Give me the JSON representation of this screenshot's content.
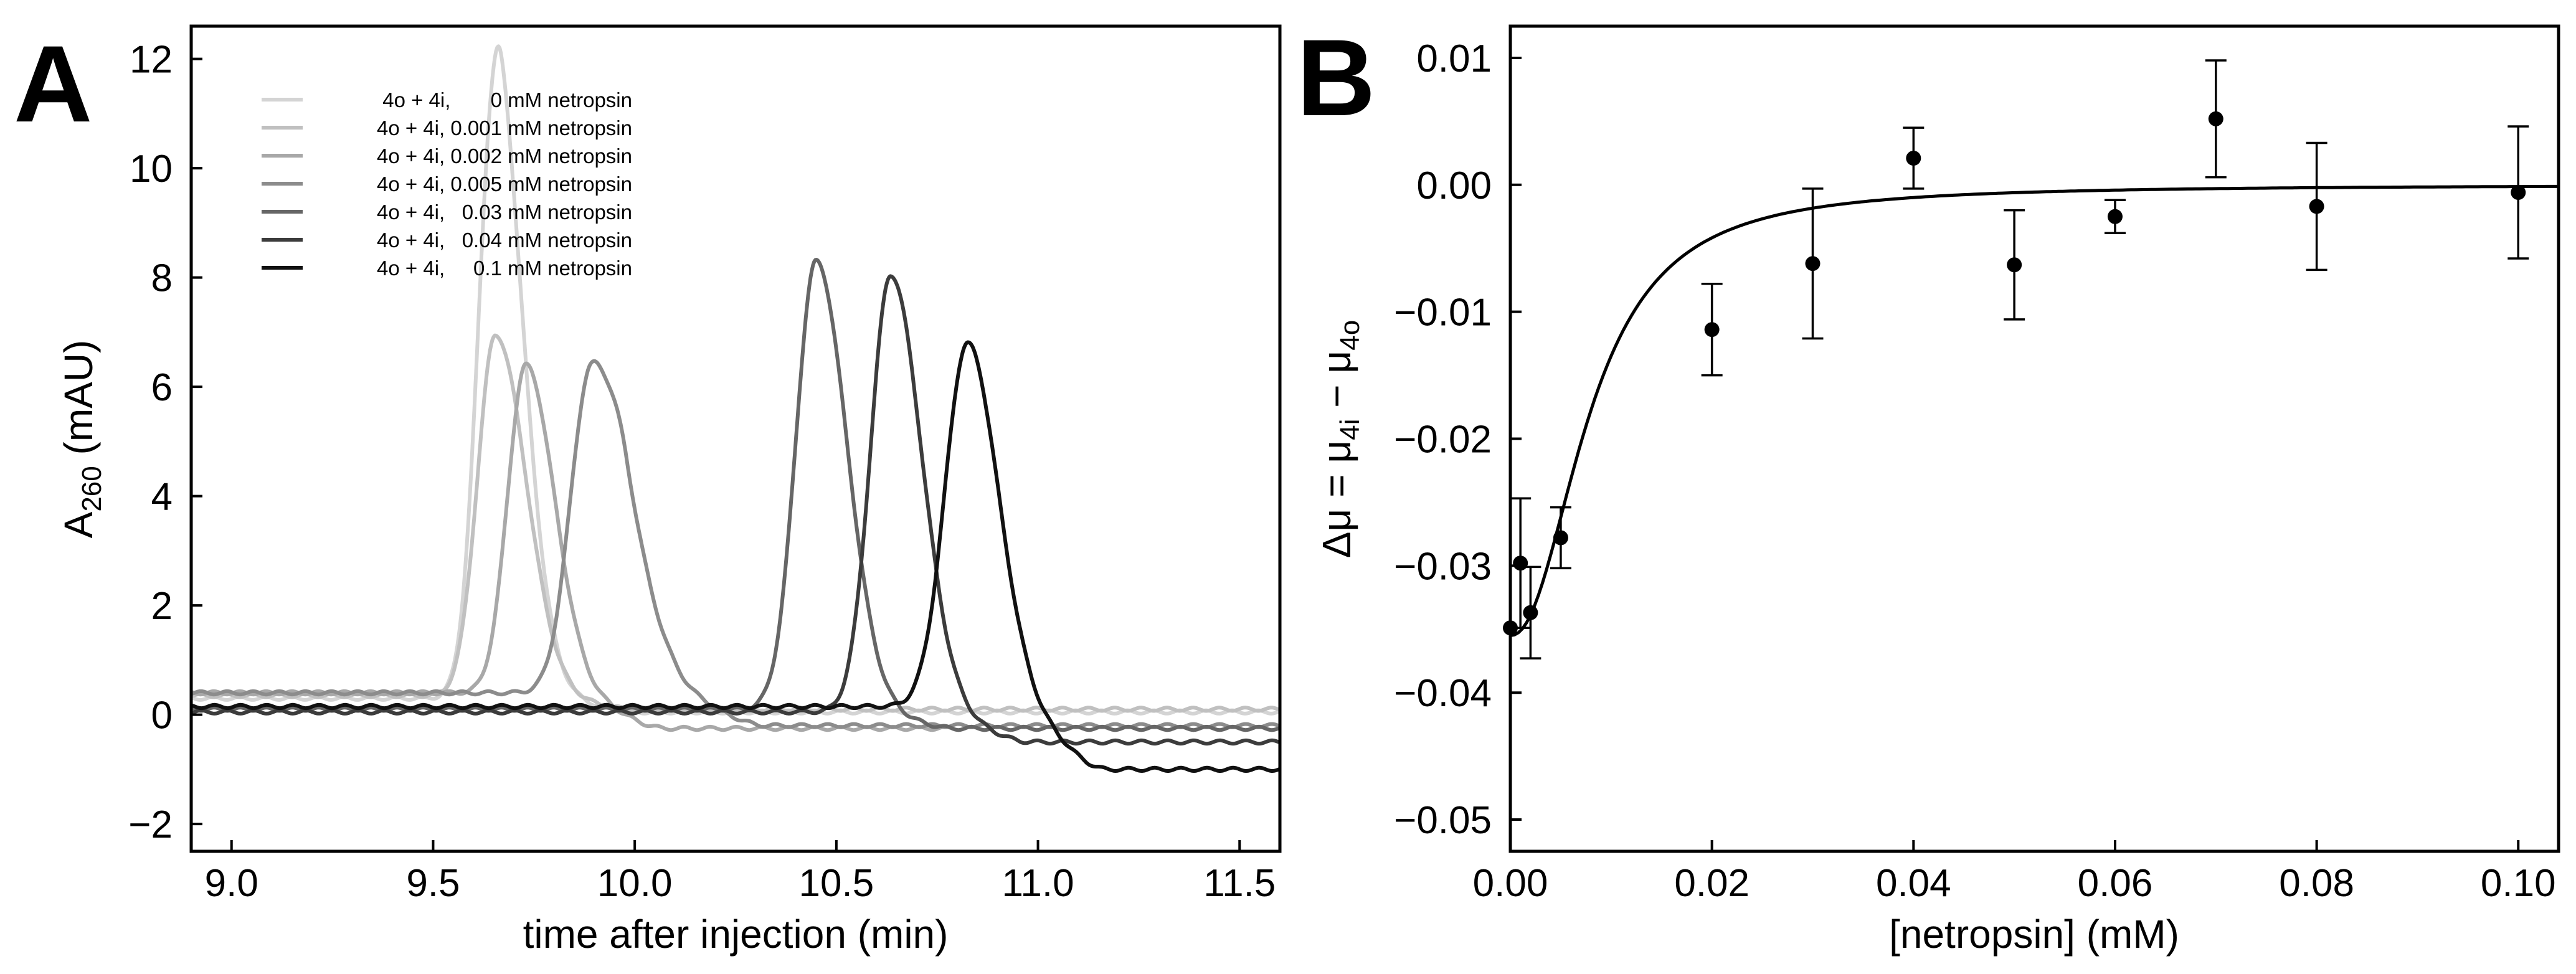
{
  "chart_data": [
    {
      "panel": "A",
      "type": "line",
      "xlabel": "time after injection (min)",
      "ylabel_main": "A",
      "ylabel_sub": "260",
      "ylabel_unit": " (mAU)",
      "xlim": [
        8.9,
        11.6
      ],
      "ylim": [
        -2.5,
        12.6
      ],
      "xticks": [
        9.0,
        9.5,
        10.0,
        10.5,
        11.0,
        11.5
      ],
      "xtick_labels": [
        "9.0",
        "9.5",
        "10.0",
        "10.5",
        "11.0",
        "11.5"
      ],
      "yticks": [
        -2,
        0,
        2,
        4,
        6,
        8,
        10,
        12
      ],
      "ytick_labels": [
        "−2",
        "0",
        "2",
        "4",
        "6",
        "8",
        "10",
        "12"
      ],
      "legend_position": "top-left",
      "series": [
        {
          "name": "4o + 4i,       0 mM netropsin",
          "color": "#d4d4d4",
          "base": 0.3,
          "tail": 0.05,
          "peaks": [
            {
              "t": 9.64,
              "h": 6.9,
              "sl": 0.04,
              "sr": 0.06
            },
            {
              "t": 9.67,
              "h": 5.6,
              "sl": 0.035,
              "sr": 0.07
            }
          ]
        },
        {
          "name": "4o + 4i, 0.001 mM netropsin",
          "color": "#c0c0c0",
          "base": 0.35,
          "tail": 0.1,
          "peaks": [
            {
              "t": 9.655,
              "h": 6.6,
              "sl": 0.045,
              "sr": 0.075
            }
          ]
        },
        {
          "name": "4o + 4i, 0.002 mM netropsin",
          "color": "#a8a8a8",
          "base": 0.4,
          "tail": -0.25,
          "peaks": [
            {
              "t": 9.73,
              "h": 6.0,
              "sl": 0.045,
              "sr": 0.07
            }
          ]
        },
        {
          "name": "4o + 4i, 0.005 mM netropsin",
          "color": "#8c8c8c",
          "base": 0.4,
          "tail": -0.2,
          "peaks": [
            {
              "t": 9.89,
              "h": 5.8,
              "sl": 0.05,
              "sr": 0.06
            },
            {
              "t": 9.98,
              "h": 2.4,
              "sl": 0.04,
              "sr": 0.07
            }
          ]
        },
        {
          "name": "4o + 4i,   0.03 mM netropsin",
          "color": "#666666",
          "base": 0.1,
          "tail": -0.25,
          "peaks": [
            {
              "t": 10.45,
              "h": 8.2,
              "sl": 0.05,
              "sr": 0.075
            }
          ]
        },
        {
          "name": "4o + 4i,   0.04 mM netropsin",
          "color": "#3c3c3c",
          "base": 0.05,
          "tail": -0.5,
          "peaks": [
            {
              "t": 10.635,
              "h": 8.0,
              "sl": 0.05,
              "sr": 0.075
            }
          ]
        },
        {
          "name": "4o + 4i,     0.1 mM netropsin",
          "color": "#111111",
          "base": 0.15,
          "tail": -1.0,
          "peaks": [
            {
              "t": 10.825,
              "h": 6.65,
              "sl": 0.055,
              "sr": 0.075
            }
          ]
        }
      ]
    },
    {
      "panel": "B",
      "type": "scatter",
      "xlabel": "[netropsin] (mM)",
      "ylabel": "Δμ = μ4i − μ4o",
      "ylabel_parts": {
        "a": "Δμ = μ",
        "b": "4i",
        "c": " − μ",
        "d": "4o"
      },
      "xlim": [
        0.0,
        0.104
      ],
      "ylim": [
        -0.0525,
        0.0125
      ],
      "xticks": [
        0.0,
        0.02,
        0.04,
        0.06,
        0.08,
        0.1
      ],
      "xtick_labels": [
        "0.00",
        "0.02",
        "0.04",
        "0.06",
        "0.08",
        "0.10"
      ],
      "yticks": [
        0.01,
        0.0,
        -0.01,
        -0.02,
        -0.03,
        -0.04,
        -0.05
      ],
      "ytick_labels": [
        "0.01",
        "0.00",
        "−0.01",
        "−0.02",
        "−0.03",
        "−0.04",
        "−0.05"
      ],
      "points": [
        {
          "x": 0.0,
          "y": -0.0349,
          "err": 0.0
        },
        {
          "x": 0.001,
          "y": -0.0298,
          "err": 0.0051
        },
        {
          "x": 0.002,
          "y": -0.0337,
          "err": 0.0036
        },
        {
          "x": 0.005,
          "y": -0.0278,
          "err": 0.0024
        },
        {
          "x": 0.02,
          "y": -0.0114,
          "err": 0.0036
        },
        {
          "x": 0.03,
          "y": -0.0062,
          "err": 0.0059
        },
        {
          "x": 0.04,
          "y": 0.0021,
          "err": 0.0024
        },
        {
          "x": 0.05,
          "y": -0.0063,
          "err": 0.0043
        },
        {
          "x": 0.06,
          "y": -0.0025,
          "err": 0.0013
        },
        {
          "x": 0.07,
          "y": 0.0052,
          "err": 0.0046
        },
        {
          "x": 0.08,
          "y": -0.0017,
          "err": 0.005
        },
        {
          "x": 0.1,
          "y": -0.0006,
          "err": 0.0052
        }
      ],
      "fit": {
        "amplitude": -0.0355,
        "k": 0.008,
        "hill": 2.2
      }
    }
  ]
}
